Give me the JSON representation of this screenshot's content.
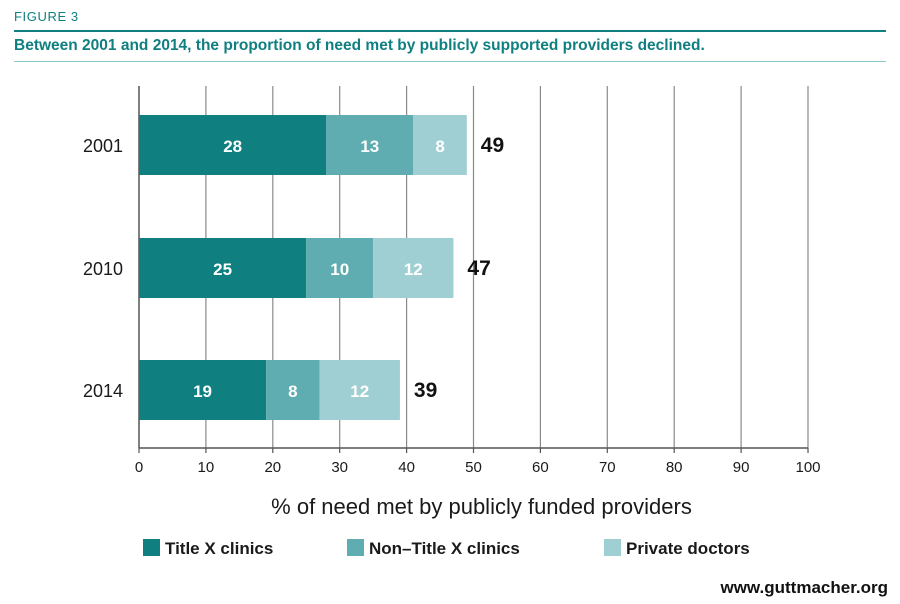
{
  "header": {
    "figure_label": "FIGURE 3",
    "title": "Between 2001 and 2014, the proportion of need met by publicly supported providers declined."
  },
  "chart_data": {
    "type": "bar",
    "orientation": "horizontal",
    "stacked": true,
    "categories": [
      "2001",
      "2010",
      "2014"
    ],
    "series": [
      {
        "name": "Title X clinics",
        "values": [
          28,
          25,
          19
        ],
        "color": "#0f7f80"
      },
      {
        "name": "Non–Title X clinics",
        "values": [
          13,
          10,
          8
        ],
        "color": "#5fadb1"
      },
      {
        "name": "Private doctors",
        "values": [
          8,
          12,
          12
        ],
        "color": "#9fcfd2"
      }
    ],
    "totals": [
      49,
      47,
      39
    ],
    "xlabel": "% of need met by publicly funded providers",
    "xlim": [
      0,
      100
    ],
    "xticks": [
      0,
      10,
      20,
      30,
      40,
      50,
      60,
      70,
      80,
      90,
      100
    ],
    "grid": "vertical",
    "legend_position": "bottom"
  },
  "footer": {
    "source": "www.guttmacher.org"
  }
}
